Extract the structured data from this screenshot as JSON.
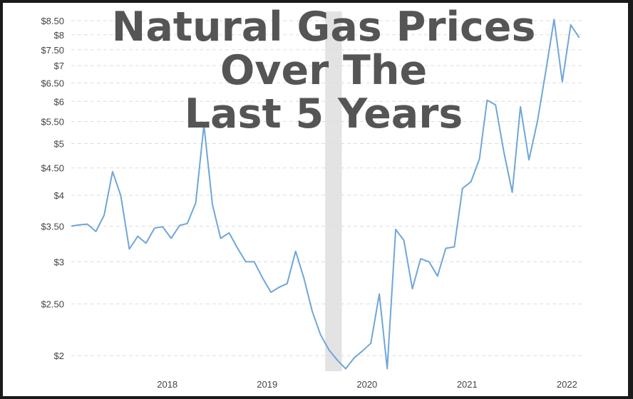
{
  "chart_data": {
    "type": "line",
    "title": [
      "Natural Gas Prices",
      "Over The",
      "Last 5 Years"
    ],
    "y_scale": "log",
    "ylim": [
      1.87,
      8.85
    ],
    "xlim": [
      "2017-01-15",
      "2022-03-01"
    ],
    "y_ticks": [
      {
        "value": 2,
        "label": "$2"
      },
      {
        "value": 2.5,
        "label": "$2.50"
      },
      {
        "value": 3,
        "label": "$3"
      },
      {
        "value": 3.5,
        "label": "$3.50"
      },
      {
        "value": 4,
        "label": "$4"
      },
      {
        "value": 4.5,
        "label": "$4.50"
      },
      {
        "value": 5,
        "label": "$5"
      },
      {
        "value": 5.5,
        "label": "$5.50"
      },
      {
        "value": 6,
        "label": "$6"
      },
      {
        "value": 6.5,
        "label": "$6.50"
      },
      {
        "value": 7,
        "label": "$7"
      },
      {
        "value": 7.5,
        "label": "$7.50"
      },
      {
        "value": 8,
        "label": "$8"
      },
      {
        "value": 8.5,
        "label": "$8.50"
      }
    ],
    "x_ticks": [
      {
        "date": "2018-01-01",
        "label": "2018"
      },
      {
        "date": "2019-01-01",
        "label": "2019"
      },
      {
        "date": "2020-01-01",
        "label": "2020"
      },
      {
        "date": "2021-01-01",
        "label": "2021"
      },
      {
        "date": "2022-01-01",
        "label": "2022"
      }
    ],
    "grid": true,
    "shaded_range": {
      "start": "2019-08-01",
      "end": "2019-10-01",
      "color": "#e3e3e3"
    },
    "line_color": "#6fa6d8",
    "series": [
      {
        "values": [
          [
            "2017-01-15",
            3.5
          ],
          [
            "2017-02-15",
            3.52
          ],
          [
            "2017-03-15",
            3.53
          ],
          [
            "2017-04-15",
            3.42
          ],
          [
            "2017-05-15",
            3.67
          ],
          [
            "2017-06-15",
            4.43
          ],
          [
            "2017-07-15",
            3.99
          ],
          [
            "2017-08-15",
            3.17
          ],
          [
            "2017-09-15",
            3.35
          ],
          [
            "2017-10-15",
            3.25
          ],
          [
            "2017-11-15",
            3.47
          ],
          [
            "2017-12-15",
            3.49
          ],
          [
            "2018-01-15",
            3.32
          ],
          [
            "2018-02-15",
            3.51
          ],
          [
            "2018-03-15",
            3.54
          ],
          [
            "2018-04-15",
            3.87
          ],
          [
            "2018-05-15",
            5.42
          ],
          [
            "2018-06-15",
            3.84
          ],
          [
            "2018-07-15",
            3.32
          ],
          [
            "2018-08-15",
            3.4
          ],
          [
            "2018-09-15",
            3.18
          ],
          [
            "2018-10-15",
            3.0
          ],
          [
            "2018-11-15",
            3.0
          ],
          [
            "2018-12-15",
            2.8
          ],
          [
            "2019-01-15",
            2.63
          ],
          [
            "2019-02-15",
            2.69
          ],
          [
            "2019-03-15",
            2.73
          ],
          [
            "2019-04-15",
            3.14
          ],
          [
            "2019-05-15",
            2.8
          ],
          [
            "2019-06-15",
            2.42
          ],
          [
            "2019-07-15",
            2.19
          ],
          [
            "2019-08-15",
            2.05
          ],
          [
            "2019-09-15",
            1.96
          ],
          [
            "2019-10-15",
            1.89
          ],
          [
            "2019-11-15",
            1.98
          ],
          [
            "2019-12-15",
            2.04
          ],
          [
            "2020-01-15",
            2.11
          ],
          [
            "2020-02-15",
            2.61
          ],
          [
            "2020-03-15",
            1.89
          ],
          [
            "2020-04-15",
            3.45
          ],
          [
            "2020-05-15",
            3.29
          ],
          [
            "2020-06-15",
            2.67
          ],
          [
            "2020-07-15",
            3.04
          ],
          [
            "2020-08-15",
            3.0
          ],
          [
            "2020-09-15",
            2.82
          ],
          [
            "2020-10-15",
            3.18
          ],
          [
            "2020-11-15",
            3.2
          ],
          [
            "2020-12-15",
            4.12
          ],
          [
            "2021-01-15",
            4.24
          ],
          [
            "2021-02-15",
            4.68
          ],
          [
            "2021-03-15",
            6.03
          ],
          [
            "2021-04-15",
            5.91
          ],
          [
            "2021-05-15",
            4.83
          ],
          [
            "2021-06-15",
            4.05
          ],
          [
            "2021-07-15",
            5.86
          ],
          [
            "2021-08-15",
            4.66
          ],
          [
            "2021-09-15",
            5.5
          ],
          [
            "2021-10-15",
            6.8
          ],
          [
            "2021-11-15",
            8.55
          ],
          [
            "2021-12-15",
            6.53
          ],
          [
            "2022-01-15",
            8.35
          ],
          [
            "2022-02-15",
            7.9
          ]
        ]
      }
    ]
  }
}
